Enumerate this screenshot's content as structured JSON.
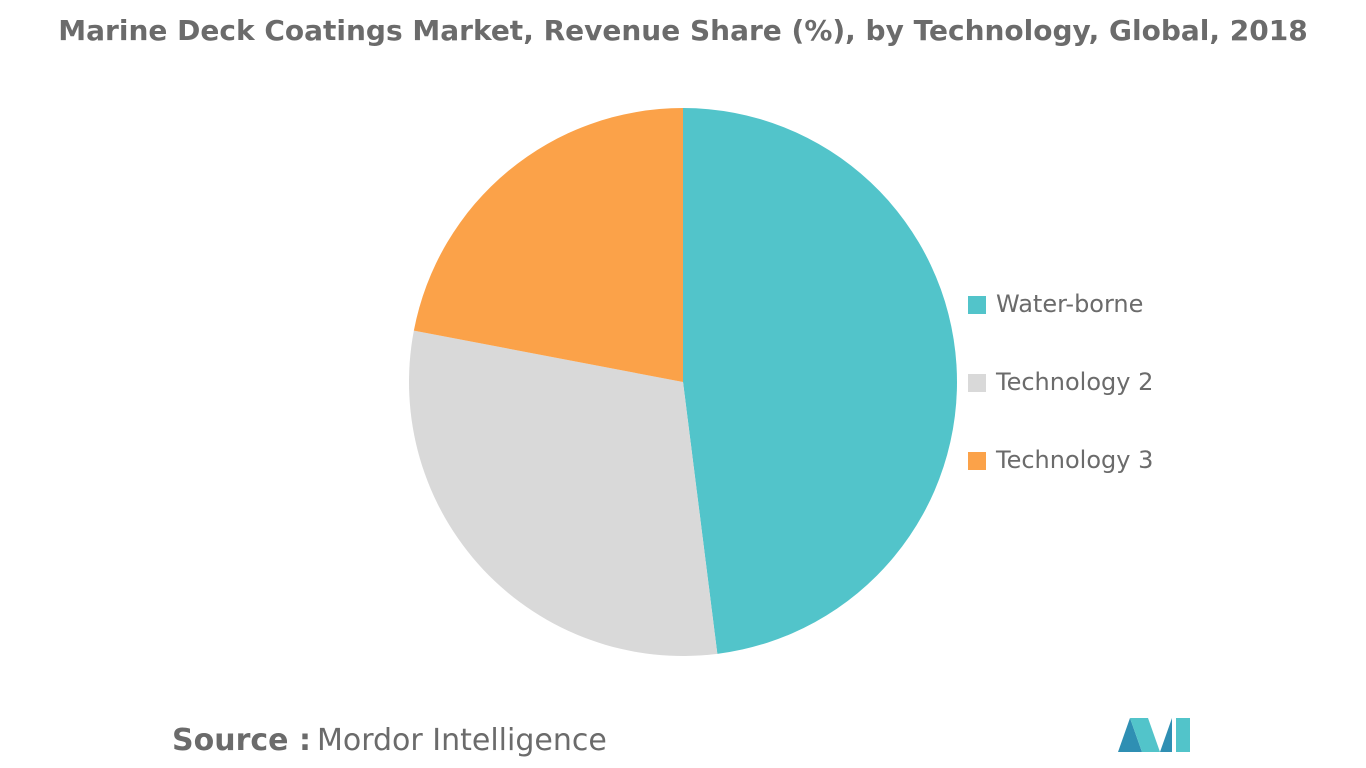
{
  "chart_data": {
    "type": "pie",
    "title": "Marine Deck Coatings Market, Revenue Share (%), by Technology, Global, 2018",
    "categories": [
      "Water-borne",
      "Technology 2",
      "Technology 3"
    ],
    "values": [
      48,
      30,
      22
    ],
    "colors": [
      "#52c4ca",
      "#d9d9d9",
      "#fba249"
    ],
    "legend": "right",
    "source_label": "Source :",
    "source": "Mordor Intelligence"
  }
}
